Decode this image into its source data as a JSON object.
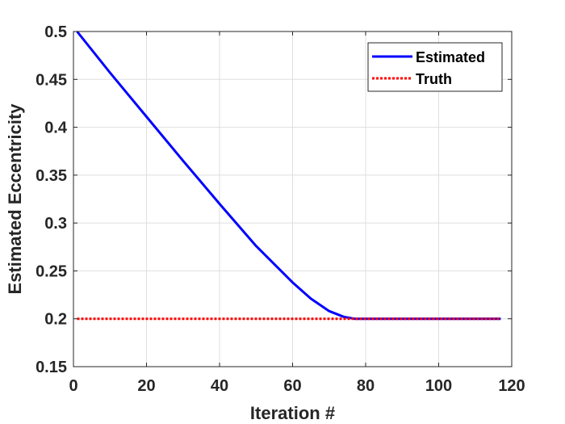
{
  "chart_data": {
    "type": "line",
    "xlabel": "Iteration #",
    "ylabel": "Estimated Eccentricity",
    "xlim": [
      0,
      120
    ],
    "ylim": [
      0.15,
      0.5
    ],
    "xticks": [
      0,
      20,
      40,
      60,
      80,
      100,
      120
    ],
    "yticks": [
      0.15,
      0.2,
      0.25,
      0.3,
      0.35,
      0.4,
      0.45,
      0.5
    ],
    "xtick_labels": [
      "0",
      "20",
      "40",
      "60",
      "80",
      "100",
      "120"
    ],
    "ytick_labels": [
      "0.15",
      "0.2",
      "0.25",
      "0.3",
      "0.35",
      "0.4",
      "0.45",
      "0.5"
    ],
    "grid": true,
    "legend_position": "top-right",
    "series": [
      {
        "name": "Estimated",
        "color": "#0000ff",
        "style": "solid",
        "x": [
          1,
          10,
          20,
          30,
          40,
          50,
          60,
          65,
          70,
          74,
          77,
          79,
          80,
          90,
          100,
          110,
          117
        ],
        "y": [
          0.5,
          0.457,
          0.411,
          0.365,
          0.32,
          0.276,
          0.238,
          0.221,
          0.208,
          0.202,
          0.2,
          0.2,
          0.2,
          0.2,
          0.2,
          0.2,
          0.2
        ]
      },
      {
        "name": "Truth",
        "color": "#ff0000",
        "style": "dotted",
        "x": [
          1,
          117
        ],
        "y": [
          0.2,
          0.2
        ]
      }
    ]
  }
}
